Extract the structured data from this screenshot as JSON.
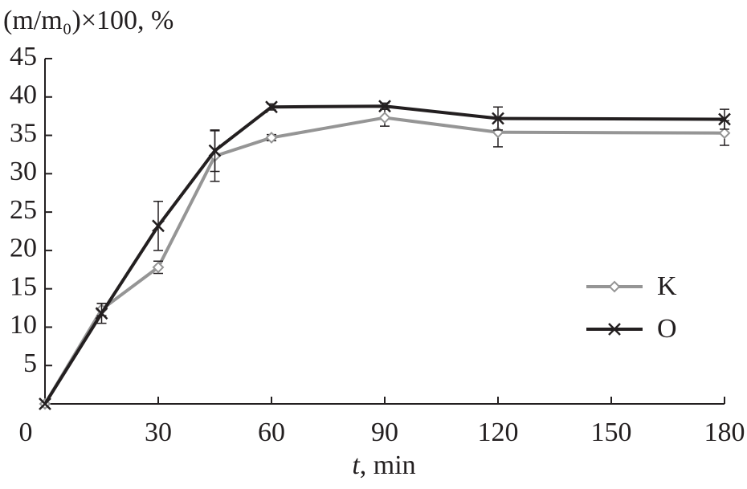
{
  "chart_data": {
    "type": "line",
    "y_label": "(m/m₀)×100, %",
    "x_label_var": "t",
    "x_label_unit": ", min",
    "x": [
      0,
      15,
      30,
      45,
      60,
      90,
      120,
      180
    ],
    "series": [
      {
        "name": "K",
        "color": "#959595",
        "marker": "diamond",
        "values": [
          0,
          12.3,
          17.8,
          32.3,
          34.7,
          37.3,
          35.4,
          35.3
        ],
        "errors": [
          0,
          0.8,
          0.8,
          3.3,
          0.4,
          1.1,
          1.9,
          1.6
        ]
      },
      {
        "name": "O",
        "color": "#231f20",
        "marker": "x",
        "values": [
          0,
          11.8,
          23.2,
          33,
          38.7,
          38.8,
          37.2,
          37.1
        ],
        "errors": [
          0,
          1.3,
          3.2,
          2.7,
          0.4,
          0.4,
          1.5,
          1.3
        ]
      }
    ],
    "xlim": [
      0,
      180
    ],
    "xticks": [
      0,
      30,
      60,
      90,
      120,
      150,
      180
    ],
    "ylim": [
      0,
      45
    ],
    "yticks": [
      5,
      10,
      15,
      20,
      25,
      30,
      35,
      40,
      45
    ],
    "grid": false,
    "legend": "right"
  }
}
